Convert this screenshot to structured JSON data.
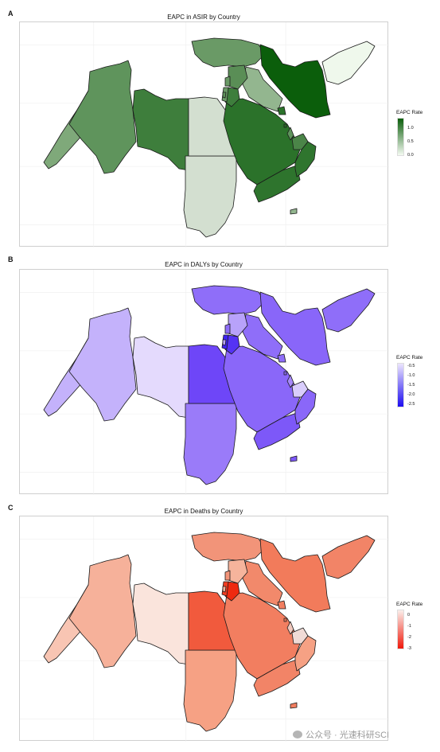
{
  "panels": [
    {
      "letter": "A",
      "title": "EAPC in ASIR by Country",
      "legend_title": "EAPC Rate",
      "legend_ticks": [
        "1.0",
        "0.5",
        "0.0"
      ],
      "colors": {
        "bar_top": "#0b5e0b",
        "bar_bottom": "#f4fbf1",
        "border": "#1a1a1a",
        "morocco": "#7fa97a",
        "algeria": "#5f945c",
        "libya": "#3e7e3c",
        "egypt": "#d3dfd0",
        "sudan": "#d3dfd0",
        "turkey": "#6a9a66",
        "syria": "#5a8e56",
        "iraq": "#93b68f",
        "iran": "#0b5e0b",
        "afghanistan": "#eff8ec",
        "saudi_arabia": "#2b722a",
        "yemen": "#2e742d",
        "oman": "#2f752e",
        "uae": "#4b8548",
        "qatar": "#5f945c",
        "jordan": "#3e7e3c",
        "israel": "#6a9a66",
        "lebanon": "#6a9a66",
        "palestine": "#5f945c",
        "kuwait": "#2b722a",
        "bahrain": "#2b722a",
        "somalia": "#93b68f"
      }
    },
    {
      "letter": "B",
      "title": "EAPC in DALYs by Country",
      "legend_title": "EAPC Rate",
      "legend_ticks": [
        "-0.5",
        "-1.0",
        "-1.5",
        "-2.0",
        "-2.5"
      ],
      "colors": {
        "bar_top": "#ece5fe",
        "bar_bottom": "#1d0df0",
        "border": "#1a1a1a",
        "morocco": "#c4b2fb",
        "algeria": "#c4b2fb",
        "libya": "#e4dafd",
        "egypt": "#6e46f8",
        "sudan": "#9a7bf9",
        "turkey": "#8f6ef9",
        "syria": "#b8a2fa",
        "iraq": "#8f6ef9",
        "iran": "#8966f9",
        "afghanistan": "#8f6ef9",
        "saudi_arabia": "#8a67f9",
        "yemen": "#7d58f8",
        "oman": "#8a67f9",
        "uae": "#d9cdfc",
        "qatar": "#a789fa",
        "jordan": "#5533f4",
        "israel": "#3f22f2",
        "lebanon": "#8f6ef9",
        "palestine": "#b8a2fa",
        "kuwait": "#8f6ef9",
        "bahrain": "#8f6ef9",
        "somalia": "#7d58f8"
      }
    },
    {
      "letter": "C",
      "title": "EAPC in Deaths by Country",
      "legend_title": "EAPC Rate",
      "legend_ticks": [
        "0",
        "-1",
        "-2",
        "-3"
      ],
      "colors": {
        "bar_top": "#fbeeea",
        "bar_bottom": "#f01a0c",
        "border": "#1a1a1a",
        "morocco": "#f8c5b3",
        "algeria": "#f6b19a",
        "libya": "#fae4dc",
        "egypt": "#f15a3d",
        "sudan": "#f6a184",
        "turkey": "#f29479",
        "syria": "#f6b49c",
        "iraq": "#f2896b",
        "iran": "#f27b5b",
        "afghanistan": "#f28467",
        "saudi_arabia": "#f27e60",
        "yemen": "#f28467",
        "oman": "#f6a184",
        "uae": "#f0dbd6",
        "qatar": "#f0c8bd",
        "jordan": "#ef2a10",
        "israel": "#f03d22",
        "lebanon": "#f29479",
        "palestine": "#f6b49c",
        "kuwait": "#f27e60",
        "bahrain": "#f27e60",
        "somalia": "#f27e60"
      }
    }
  ],
  "watermark": "公众号 · 光速科研SCI"
}
